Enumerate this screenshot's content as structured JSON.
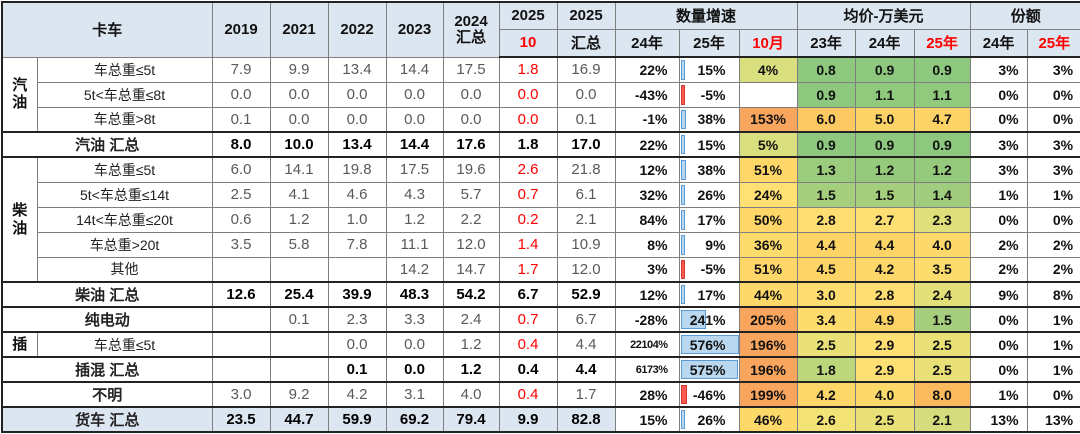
{
  "header": {
    "col_label": "卡车",
    "years": [
      "2019",
      "2021",
      "2022",
      "2023"
    ],
    "col_2024": {
      "line1": "2024",
      "line2": "汇总"
    },
    "col_2025_oct": {
      "line1": "2025",
      "line2": "10"
    },
    "col_2025_total": {
      "line1": "2025",
      "line2": "汇总"
    },
    "groups": {
      "growth": "数量增速",
      "price": "均价-万美元",
      "share": "份额"
    },
    "growth_sub": [
      "24年",
      "25年",
      "10月"
    ],
    "price_sub": [
      "23年",
      "24年",
      "25年"
    ],
    "share_sub": [
      "24年",
      "25年"
    ]
  },
  "colors": {
    "header_bg": "#dce6f1",
    "total_row_bg": "#dce6f1",
    "red_text": "#ff0000",
    "bar_positive_fill": "#b9d7ee",
    "bar_positive_border": "#5b9bd5",
    "bar_negative_fill": "#ff5a52",
    "grid_line": "#7f7f7f",
    "section_line": "#222222"
  },
  "bar_scale_max": 576,
  "rows": [
    {
      "group": "汽油",
      "gspan": 3,
      "label": "车总重≤5t",
      "vals": [
        "7.9",
        "9.9",
        "13.4",
        "14.4",
        "17.5"
      ],
      "oct": "1.8",
      "t25": "16.9",
      "g24": "22%",
      "g25": {
        "t": "15%",
        "v": 15
      },
      "g10": {
        "t": "4%",
        "bg": "#d9df7f"
      },
      "price": [
        {
          "t": "0.8",
          "bg": "#8dc87e"
        },
        {
          "t": "0.9",
          "bg": "#8dc87e"
        },
        {
          "t": "0.9",
          "bg": "#8dc87e"
        }
      ],
      "share": [
        "3%",
        "3%"
      ]
    },
    {
      "label": "5t<车总重≤8t",
      "vals": [
        "0.0",
        "0.0",
        "0.0",
        "0.0",
        "0.0"
      ],
      "oct": "0.0",
      "t25": "0.0",
      "g24": "-43%",
      "g25": {
        "t": "-5%",
        "v": -5
      },
      "g10": {
        "t": "",
        "bg": ""
      },
      "price": [
        {
          "t": "0.9",
          "bg": "#8dc87e"
        },
        {
          "t": "1.1",
          "bg": "#91c97d"
        },
        {
          "t": "1.1",
          "bg": "#91c97d"
        }
      ],
      "share": [
        "0%",
        "0%"
      ]
    },
    {
      "label": "车总重>8t",
      "vals": [
        "0.1",
        "0.0",
        "0.0",
        "0.0",
        "0.0"
      ],
      "oct": "0.0",
      "t25": "0.1",
      "g24": "-1%",
      "g25": {
        "t": "38%",
        "v": 38
      },
      "g10": {
        "t": "153%",
        "bg": "#f9a55d"
      },
      "price": [
        {
          "t": "6.0",
          "bg": "#fcc862"
        },
        {
          "t": "5.0",
          "bg": "#fdd266"
        },
        {
          "t": "4.7",
          "bg": "#fdd266"
        }
      ],
      "share": [
        "0%",
        "0%"
      ]
    },
    {
      "label": "汽油 汇总",
      "total": true,
      "sec": true,
      "vals": [
        "8.0",
        "10.0",
        "13.4",
        "14.4",
        "17.6"
      ],
      "oct": "1.8",
      "t25": "17.0",
      "g24": "22%",
      "g25": {
        "t": "15%",
        "v": 15
      },
      "g10": {
        "t": "5%",
        "bg": "#d9df7f"
      },
      "price": [
        {
          "t": "0.9",
          "bg": "#8dc87e"
        },
        {
          "t": "0.9",
          "bg": "#8dc87e"
        },
        {
          "t": "0.9",
          "bg": "#8dc87e"
        }
      ],
      "share": [
        "3%",
        "3%"
      ]
    },
    {
      "group": "柴油",
      "gspan": 5,
      "sec": true,
      "label": "车总重≤5t",
      "vals": [
        "6.0",
        "14.1",
        "19.8",
        "17.5",
        "19.6"
      ],
      "oct": "2.6",
      "t25": "21.8",
      "g24": "12%",
      "g25": {
        "t": "38%",
        "v": 38
      },
      "g10": {
        "t": "51%",
        "bg": "#fed768"
      },
      "price": [
        {
          "t": "1.3",
          "bg": "#9bcc7d"
        },
        {
          "t": "1.2",
          "bg": "#95ca7d"
        },
        {
          "t": "1.2",
          "bg": "#95ca7d"
        }
      ],
      "share": [
        "3%",
        "3%"
      ]
    },
    {
      "label": "5t<车总重≤14t",
      "vals": [
        "2.5",
        "4.1",
        "4.6",
        "4.3",
        "5.7"
      ],
      "oct": "0.7",
      "t25": "6.1",
      "g24": "32%",
      "g25": {
        "t": "26%",
        "v": 26
      },
      "g10": {
        "t": "24%",
        "bg": "#fee074"
      },
      "price": [
        {
          "t": "1.5",
          "bg": "#a5cf7d"
        },
        {
          "t": "1.5",
          "bg": "#a5cf7d"
        },
        {
          "t": "1.4",
          "bg": "#9fcd7d"
        }
      ],
      "share": [
        "1%",
        "1%"
      ]
    },
    {
      "label": "14t<车总重≤20t",
      "vals": [
        "0.6",
        "1.2",
        "1.0",
        "1.2",
        "2.2"
      ],
      "oct": "0.2",
      "t25": "2.1",
      "g24": "84%",
      "g25": {
        "t": "17%",
        "v": 17
      },
      "g10": {
        "t": "50%",
        "bg": "#fed768"
      },
      "price": [
        {
          "t": "2.8",
          "bg": "#fede72"
        },
        {
          "t": "2.7",
          "bg": "#fedf73"
        },
        {
          "t": "2.3",
          "bg": "#dfdf7b"
        }
      ],
      "share": [
        "0%",
        "0%"
      ]
    },
    {
      "label": "车总重>20t",
      "vals": [
        "3.5",
        "5.8",
        "7.8",
        "11.1",
        "12.0"
      ],
      "oct": "1.4",
      "t25": "10.9",
      "g24": "8%",
      "g25": {
        "t": "9%",
        "v": 9
      },
      "g10": {
        "t": "36%",
        "bg": "#fedb6d"
      },
      "price": [
        {
          "t": "4.4",
          "bg": "#fdd567"
        },
        {
          "t": "4.4",
          "bg": "#fdd567"
        },
        {
          "t": "4.0",
          "bg": "#fdd96b"
        }
      ],
      "share": [
        "2%",
        "2%"
      ]
    },
    {
      "label": "其他",
      "vals": [
        "",
        "",
        "",
        "14.2",
        "14.7"
      ],
      "oct": "1.7",
      "t25": "12.0",
      "g24": "3%",
      "g25": {
        "t": "-5%",
        "v": -5
      },
      "g10": {
        "t": "51%",
        "bg": "#fed768"
      },
      "price": [
        {
          "t": "4.5",
          "bg": "#fdd466"
        },
        {
          "t": "4.2",
          "bg": "#fdd768"
        },
        {
          "t": "3.5",
          "bg": "#fedb6d"
        }
      ],
      "share": [
        "2%",
        "2%"
      ]
    },
    {
      "label": "柴油 汇总",
      "total": true,
      "sec": true,
      "vals": [
        "12.6",
        "25.4",
        "39.9",
        "48.3",
        "54.2"
      ],
      "oct": "6.7",
      "t25": "52.9",
      "g24": "12%",
      "g25": {
        "t": "17%",
        "v": 17
      },
      "g10": {
        "t": "44%",
        "bg": "#fed96a"
      },
      "price": [
        {
          "t": "3.0",
          "bg": "#fedd70"
        },
        {
          "t": "2.8",
          "bg": "#fede72"
        },
        {
          "t": "2.4",
          "bg": "#e4e079"
        }
      ],
      "share": [
        "9%",
        "8%"
      ]
    },
    {
      "label": "纯电动",
      "label_bold": true,
      "sec": true,
      "vals": [
        "",
        "0.1",
        "2.3",
        "3.3",
        "2.4"
      ],
      "oct": "0.7",
      "t25": "6.7",
      "g24": "-28%",
      "g25": {
        "t": "241%",
        "v": 241
      },
      "g10": {
        "t": "205%",
        "bg": "#f9a55d"
      },
      "price": [
        {
          "t": "3.4",
          "bg": "#fedb6d"
        },
        {
          "t": "4.9",
          "bg": "#fdd366"
        },
        {
          "t": "1.5",
          "bg": "#a5cf7d"
        }
      ],
      "share": [
        "0%",
        "1%"
      ]
    },
    {
      "group": "插",
      "gspan": 1,
      "sec": true,
      "label": "车总重≤5t",
      "vals": [
        "",
        "",
        "0.0",
        "0.0",
        "1.2"
      ],
      "oct": "0.4",
      "t25": "4.4",
      "g24": "22104%",
      "g25": {
        "t": "576%",
        "v": 576
      },
      "g10": {
        "t": "196%",
        "bg": "#f9a55d"
      },
      "price": [
        {
          "t": "2.5",
          "bg": "#e9e177"
        },
        {
          "t": "2.9",
          "bg": "#fedf73"
        },
        {
          "t": "2.5",
          "bg": "#e9e177"
        }
      ],
      "share": [
        "0%",
        "1%"
      ]
    },
    {
      "label": "插混 汇总",
      "total": true,
      "sec": true,
      "vals": [
        "",
        "",
        "0.1",
        "0.0",
        "1.2"
      ],
      "oct": "0.4",
      "t25": "4.4",
      "g24": "6173%",
      "g25": {
        "t": "575%",
        "v": 575
      },
      "g10": {
        "t": "196%",
        "bg": "#f9a55d"
      },
      "price": [
        {
          "t": "1.8",
          "bg": "#bcd67b"
        },
        {
          "t": "2.9",
          "bg": "#fedf73"
        },
        {
          "t": "2.5",
          "bg": "#e9e177"
        }
      ],
      "share": [
        "0%",
        "1%"
      ]
    },
    {
      "label": "不明",
      "label_bold": true,
      "sec": true,
      "vals": [
        "3.0",
        "9.2",
        "4.2",
        "3.1",
        "4.0"
      ],
      "oct": "0.4",
      "t25": "1.7",
      "g24": "28%",
      "g25": {
        "t": "-46%",
        "v": -46
      },
      "g10": {
        "t": "199%",
        "bg": "#f9a55d"
      },
      "price": [
        {
          "t": "4.2",
          "bg": "#fdd768"
        },
        {
          "t": "4.0",
          "bg": "#fdd96b"
        },
        {
          "t": "8.0",
          "bg": "#fbba5e"
        }
      ],
      "share": [
        "1%",
        "0%"
      ]
    },
    {
      "label": "货车 汇总",
      "total": true,
      "sec": true,
      "row_bg": "#dce6f1",
      "vals": [
        "23.5",
        "44.7",
        "59.9",
        "69.2",
        "79.4"
      ],
      "oct": "9.9",
      "t25": "82.8",
      "g24": "15%",
      "g25": {
        "t": "26%",
        "v": 26
      },
      "g10": {
        "t": "46%",
        "bg": "#fdd96a"
      },
      "price": [
        {
          "t": "2.6",
          "bg": "#f3e275"
        },
        {
          "t": "2.5",
          "bg": "#e9e177"
        },
        {
          "t": "2.1",
          "bg": "#d4dc7d"
        }
      ],
      "share": [
        "13%",
        "13%"
      ]
    }
  ]
}
